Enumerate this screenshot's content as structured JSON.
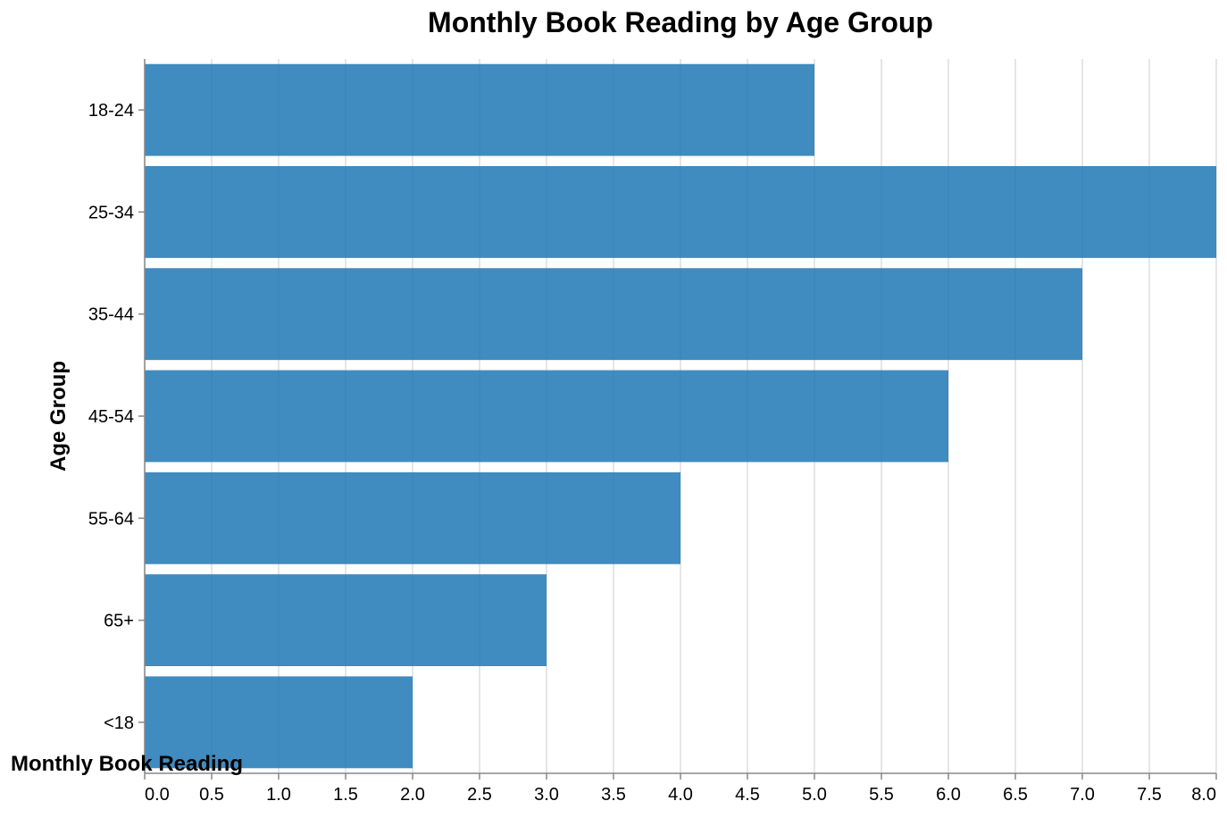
{
  "chart_data": {
    "type": "bar",
    "orientation": "horizontal",
    "title": "Monthly Book Reading by Age Group",
    "xlabel": "Monthly Book Reading",
    "ylabel": "Age Group",
    "categories": [
      "18-24",
      "25-34",
      "35-44",
      "45-54",
      "55-64",
      "65+",
      "<18"
    ],
    "values": [
      5,
      8,
      7,
      6,
      4,
      3,
      2
    ],
    "xlim": [
      0,
      8
    ],
    "xticks": [
      "0.0",
      "0.5",
      "1.0",
      "1.5",
      "2.0",
      "2.5",
      "3.0",
      "3.5",
      "4.0",
      "4.5",
      "5.0",
      "5.5",
      "6.0",
      "6.5",
      "7.0",
      "7.5",
      "8.0"
    ],
    "grid": true,
    "bar_color": "#1f77b4"
  }
}
